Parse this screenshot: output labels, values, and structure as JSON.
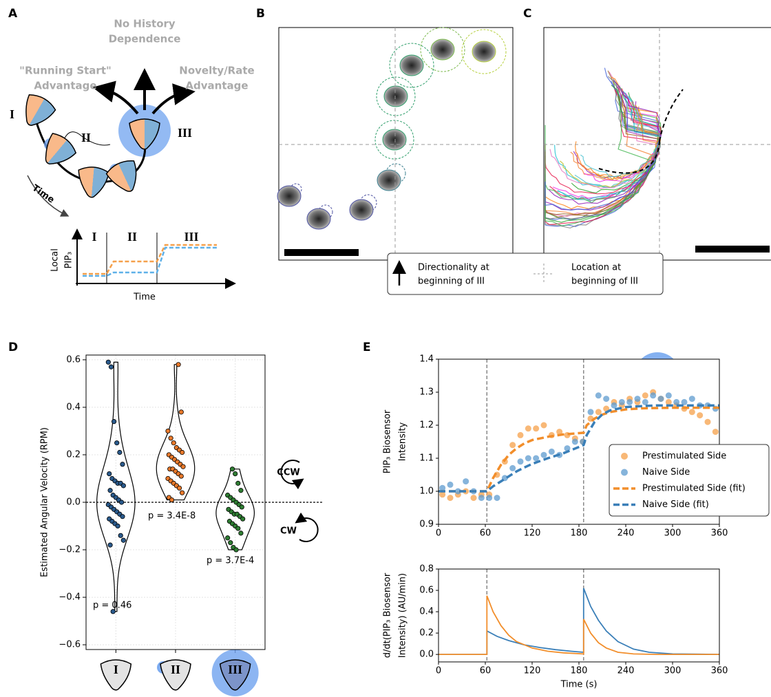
{
  "panel_labels": [
    "A",
    "B",
    "C",
    "D",
    "E"
  ],
  "diagram": {
    "outcomes": [
      [
        "No History",
        "Dependence"
      ],
      [
        "\"Running Start\"",
        "Advantage"
      ],
      [
        "Novelty/Rate",
        "Advantage"
      ]
    ],
    "stages": [
      "I",
      "II",
      "III"
    ],
    "time_arrow": "Time",
    "mini_plot": {
      "stages": [
        "I",
        "II",
        "III"
      ],
      "ylabel": [
        "Local",
        "PIP₃"
      ],
      "xlabel": "Time"
    }
  },
  "legend_bc": {
    "arrow": [
      "Directionality at",
      "beginning of III"
    ],
    "cross": [
      "Location at",
      "beginning of III"
    ]
  },
  "chart_data": [
    {
      "type": "violin",
      "ylabel": "Estimated Angular Velocity (RPM)",
      "categories": [
        "I",
        "II",
        "III"
      ],
      "groups": [
        {
          "color": "#2a5a8c",
          "values": [
            0.59,
            0.57,
            0.34,
            0.25,
            0.21,
            0.16,
            0.12,
            0.1,
            0.09,
            0.08,
            0.08,
            0.07,
            0.05,
            0.03,
            0.02,
            0.01,
            0.0,
            -0.01,
            -0.02,
            -0.03,
            -0.04,
            -0.05,
            -0.06,
            -0.07,
            -0.08,
            -0.09,
            -0.1,
            -0.14,
            -0.16,
            -0.18,
            -0.46
          ]
        },
        {
          "color": "#e8792b",
          "values": [
            0.58,
            0.38,
            0.3,
            0.27,
            0.25,
            0.23,
            0.22,
            0.21,
            0.2,
            0.19,
            0.18,
            0.17,
            0.16,
            0.15,
            0.14,
            0.14,
            0.13,
            0.12,
            0.11,
            0.1,
            0.09,
            0.08,
            0.07,
            0.06,
            0.04,
            0.02,
            0.01
          ]
        },
        {
          "color": "#2e7d32",
          "values": [
            0.14,
            0.12,
            0.08,
            0.05,
            0.03,
            0.02,
            0.01,
            0.0,
            -0.01,
            -0.02,
            -0.03,
            -0.04,
            -0.05,
            -0.05,
            -0.06,
            -0.07,
            -0.08,
            -0.09,
            -0.1,
            -0.11,
            -0.13,
            -0.15,
            -0.17,
            -0.19,
            -0.2
          ]
        }
      ],
      "annotations": [
        "p = 0.46",
        "p = 3.4E-8",
        "p = 3.7E-4"
      ],
      "direction_labels": [
        "CCW",
        "CW"
      ],
      "hline": 0,
      "ylim": [
        -0.62,
        0.62
      ],
      "yticks": [
        {
          "value": -0.6,
          "label": "−0.6"
        },
        {
          "value": -0.4,
          "label": "−0.4"
        },
        {
          "value": -0.2,
          "label": "−0.2"
        },
        {
          "value": 0,
          "label": "0.0"
        },
        0.2,
        0.4,
        0.6
      ],
      "grid": true
    },
    {
      "type": "line",
      "ylabel": [
        "PIP₃ Biosensor",
        "Intensity"
      ],
      "xlim": [
        0,
        360
      ],
      "xticks": [
        0,
        60,
        120,
        180,
        240,
        300,
        360
      ],
      "ylim": [
        0.9,
        1.4
      ],
      "yticks": [
        0.9,
        {
          "value": 1,
          "label": "1.0"
        },
        1.1,
        1.2,
        1.3,
        1.4
      ],
      "vlines": [
        62,
        186
      ],
      "legend": "right",
      "series": [
        {
          "name": "Prestimulated Side",
          "kind": "scatter",
          "color": "#f5a04a",
          "x": [
            5,
            15,
            25,
            35,
            45,
            55,
            65,
            75,
            85,
            95,
            105,
            115,
            125,
            135,
            145,
            155,
            165,
            175,
            185,
            195,
            205,
            215,
            225,
            235,
            245,
            255,
            265,
            275,
            285,
            295,
            305,
            315,
            325,
            335,
            345,
            355
          ],
          "values": [
            0.99,
            0.98,
            0.99,
            1.0,
            0.98,
            0.99,
            0.99,
            1.05,
            1.09,
            1.14,
            1.17,
            1.19,
            1.19,
            1.2,
            1.17,
            1.18,
            1.17,
            1.16,
            1.15,
            1.22,
            1.24,
            1.25,
            1.27,
            1.26,
            1.28,
            1.27,
            1.29,
            1.3,
            1.28,
            1.27,
            1.26,
            1.25,
            1.24,
            1.23,
            1.21,
            1.18
          ]
        },
        {
          "name": "Naive Side",
          "kind": "scatter",
          "color": "#5d9bcf",
          "x": [
            5,
            15,
            25,
            35,
            45,
            55,
            65,
            75,
            85,
            95,
            105,
            115,
            125,
            135,
            145,
            155,
            165,
            175,
            185,
            195,
            205,
            215,
            225,
            235,
            245,
            255,
            265,
            275,
            285,
            295,
            305,
            315,
            325,
            335,
            345,
            355
          ],
          "values": [
            1.01,
            1.02,
            1.0,
            1.03,
            1.0,
            0.98,
            0.98,
            0.98,
            1.04,
            1.07,
            1.09,
            1.1,
            1.1,
            1.11,
            1.12,
            1.11,
            1.13,
            1.15,
            1.15,
            1.24,
            1.29,
            1.28,
            1.26,
            1.27,
            1.27,
            1.28,
            1.27,
            1.29,
            1.28,
            1.29,
            1.27,
            1.27,
            1.28,
            1.26,
            1.26,
            1.25
          ]
        },
        {
          "name": "Prestimulated Side (fit)",
          "kind": "line",
          "color": "#f28e2b",
          "x": [
            0,
            62,
            70,
            80,
            90,
            100,
            110,
            120,
            140,
            160,
            186,
            190,
            200,
            210,
            220,
            240,
            260,
            280,
            300,
            330,
            360
          ],
          "values": [
            1.0,
            1.0,
            1.04,
            1.08,
            1.11,
            1.13,
            1.145,
            1.155,
            1.165,
            1.172,
            1.177,
            1.2,
            1.22,
            1.232,
            1.24,
            1.248,
            1.251,
            1.252,
            1.253,
            1.253,
            1.253
          ]
        },
        {
          "name": "Naive Side (fit)",
          "kind": "line",
          "color": "#3a7fb8",
          "x": [
            0,
            62,
            70,
            80,
            90,
            100,
            110,
            120,
            140,
            160,
            186,
            190,
            200,
            210,
            220,
            240,
            260,
            280,
            300,
            330,
            360
          ],
          "values": [
            1.0,
            1.0,
            1.015,
            1.03,
            1.045,
            1.06,
            1.072,
            1.083,
            1.1,
            1.115,
            1.14,
            1.17,
            1.21,
            1.233,
            1.245,
            1.255,
            1.258,
            1.26,
            1.26,
            1.26,
            1.26
          ]
        }
      ]
    },
    {
      "type": "line",
      "ylabel": [
        "d/dt(PIP₃ Biosensor",
        "Intensity) (AU/min)"
      ],
      "xlabel": "Time (s)",
      "xlim": [
        0,
        360
      ],
      "xticks": [
        0,
        60,
        120,
        180,
        240,
        300,
        360
      ],
      "ylim": [
        -0.07,
        0.8
      ],
      "yticks": [
        {
          "value": 0,
          "label": "0.0"
        },
        0.2,
        0.4,
        0.6,
        0.8
      ],
      "vlines": [
        62,
        186
      ],
      "series": [
        {
          "kind": "line",
          "color": "#3a7fb8",
          "x": [
            0,
            62,
            62,
            75,
            90,
            110,
            130,
            150,
            170,
            186,
            186,
            195,
            205,
            215,
            230,
            250,
            270,
            300,
            360
          ],
          "values": [
            0,
            0,
            0.22,
            0.17,
            0.13,
            0.09,
            0.065,
            0.045,
            0.03,
            0.02,
            0.62,
            0.45,
            0.32,
            0.22,
            0.12,
            0.05,
            0.02,
            0.005,
            0
          ]
        },
        {
          "kind": "line",
          "color": "#f28e2b",
          "x": [
            0,
            62,
            62,
            70,
            80,
            90,
            100,
            120,
            140,
            160,
            186,
            186,
            195,
            205,
            215,
            230,
            250,
            280,
            360
          ],
          "values": [
            0,
            0,
            0.55,
            0.4,
            0.27,
            0.18,
            0.12,
            0.06,
            0.03,
            0.015,
            0.005,
            0.33,
            0.2,
            0.11,
            0.06,
            0.02,
            0.005,
            0,
            0
          ]
        }
      ]
    }
  ]
}
